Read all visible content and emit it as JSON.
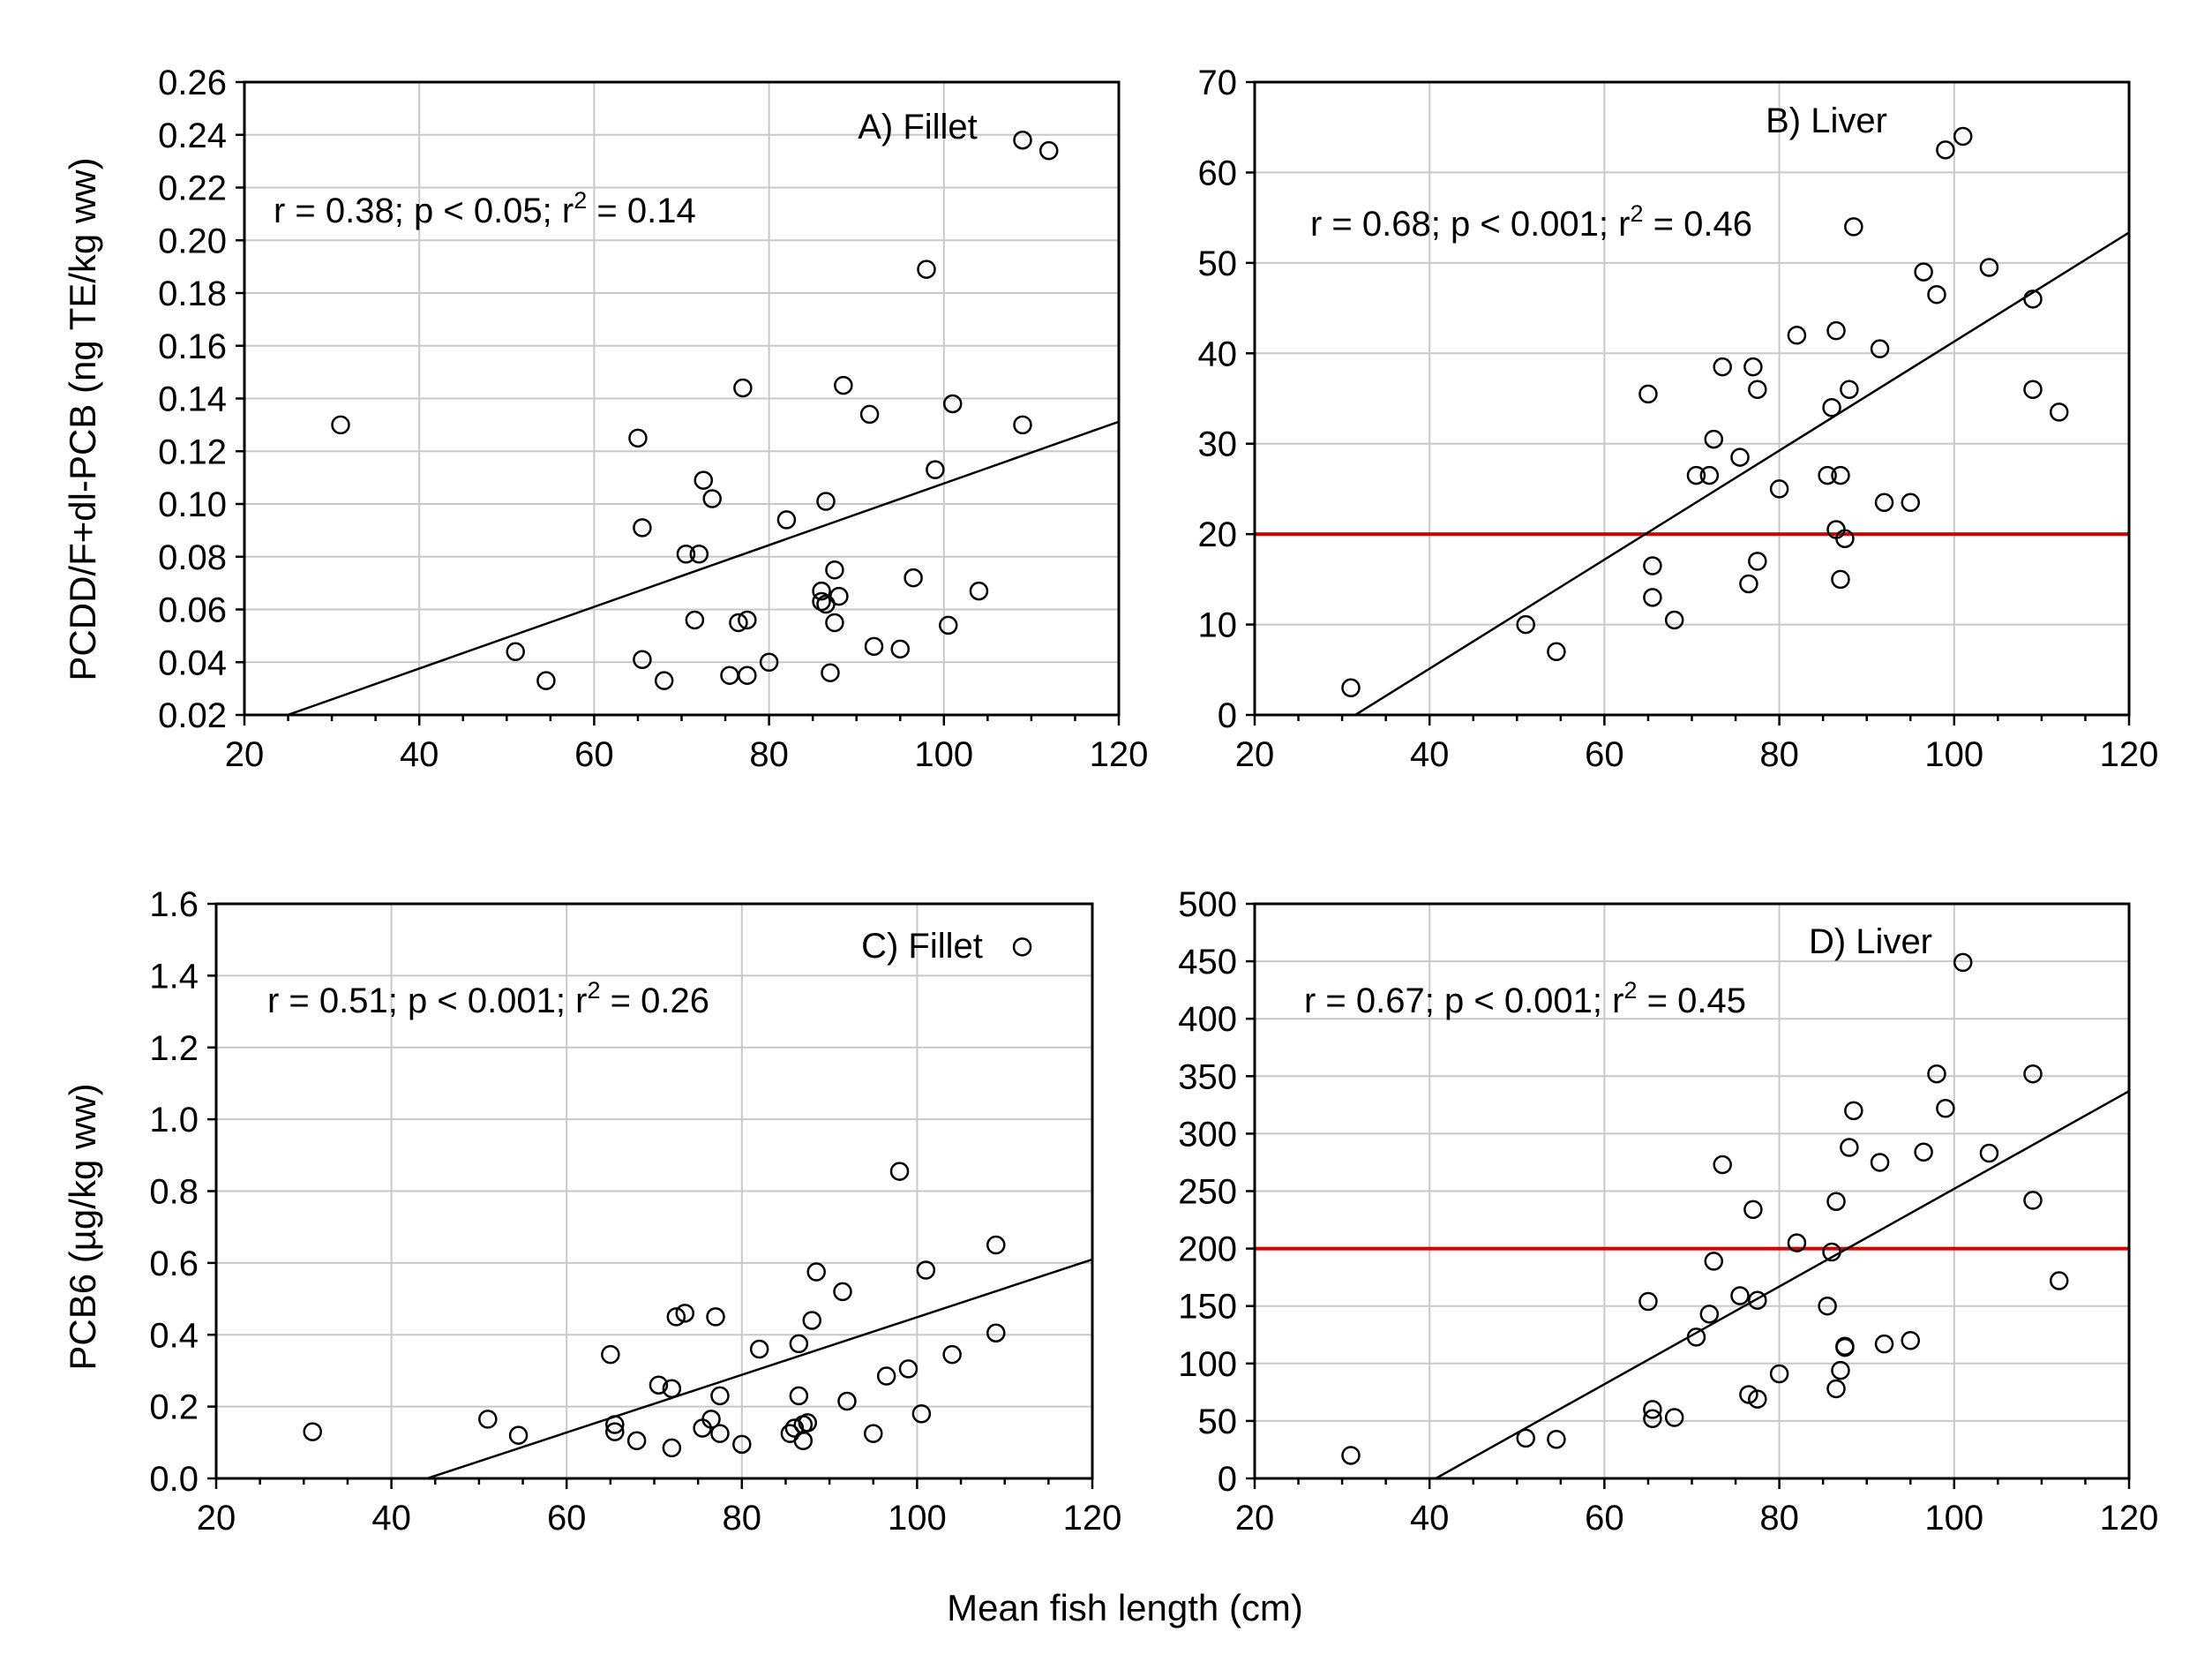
{
  "figure": {
    "xlabel": "Mean fish length (cm)",
    "ylabel_top": "PCDD/F+dl-PCB (ng TE/kg ww)",
    "ylabel_bottom": "PCB6 (µg/kg ww)",
    "colors": {
      "threshold": "#d40000",
      "grid": "#c8c8c8",
      "points": "#000000"
    }
  },
  "chart_data": [
    {
      "id": "A",
      "type": "scatter",
      "title": "A) Fillet",
      "stats": {
        "r": "0.38",
        "p": "< 0.05",
        "r2": "0.14"
      },
      "xlim": [
        20,
        120
      ],
      "ylim": [
        0.02,
        0.26
      ],
      "xticks": [
        20,
        40,
        60,
        80,
        100,
        120
      ],
      "xtick_labels": [
        "20",
        "40",
        "60",
        "80",
        "100",
        "120"
      ],
      "yticks": [
        0.02,
        0.04,
        0.06,
        0.08,
        0.1,
        0.12,
        0.14,
        0.16,
        0.18,
        0.2,
        0.22,
        0.24,
        0.26
      ],
      "ytick_labels": [
        "0.02",
        "0.04",
        "0.06",
        "0.08",
        "0.10",
        "0.12",
        "0.14",
        "0.16",
        "0.18",
        "0.20",
        "0.22",
        "0.24",
        "0.26"
      ],
      "points": [
        [
          31,
          0.13
        ],
        [
          51,
          0.044
        ],
        [
          54.5,
          0.033
        ],
        [
          65,
          0.125
        ],
        [
          65.5,
          0.091
        ],
        [
          65.5,
          0.041
        ],
        [
          68,
          0.033
        ],
        [
          70.5,
          0.081
        ],
        [
          71.5,
          0.056
        ],
        [
          72,
          0.081
        ],
        [
          72.5,
          0.109
        ],
        [
          73.5,
          0.102
        ],
        [
          75.5,
          0.035
        ],
        [
          76.5,
          0.055
        ],
        [
          77,
          0.144
        ],
        [
          77.5,
          0.056
        ],
        [
          77.5,
          0.035
        ],
        [
          80,
          0.04
        ],
        [
          82,
          0.094
        ],
        [
          86,
          0.067
        ],
        [
          86,
          0.063
        ],
        [
          86.5,
          0.101
        ],
        [
          86.5,
          0.062
        ],
        [
          87,
          0.036
        ],
        [
          87.5,
          0.075
        ],
        [
          87.5,
          0.055
        ],
        [
          88,
          0.065
        ],
        [
          88.5,
          0.145
        ],
        [
          91.5,
          0.134
        ],
        [
          92,
          0.046
        ],
        [
          95,
          0.045
        ],
        [
          96.5,
          0.072
        ],
        [
          98,
          0.189
        ],
        [
          99,
          0.113
        ],
        [
          100.5,
          0.054
        ],
        [
          101,
          0.138
        ],
        [
          104,
          0.067
        ],
        [
          109,
          0.13
        ],
        [
          109,
          0.238
        ],
        [
          112,
          0.234
        ]
      ],
      "fit": {
        "slope": 0.00117,
        "intercept": -0.0092
      },
      "threshold": null
    },
    {
      "id": "B",
      "type": "scatter",
      "title": "B) Liver",
      "stats": {
        "r": "0.68",
        "p": "< 0.001",
        "r2": "0.46"
      },
      "xlim": [
        20,
        120
      ],
      "ylim": [
        0,
        70
      ],
      "xticks": [
        20,
        40,
        60,
        80,
        100,
        120
      ],
      "xtick_labels": [
        "20",
        "40",
        "60",
        "80",
        "100",
        "120"
      ],
      "yticks": [
        0,
        10,
        20,
        30,
        40,
        50,
        60,
        70
      ],
      "ytick_labels": [
        "0",
        "10",
        "20",
        "30",
        "40",
        "50",
        "60",
        "70"
      ],
      "points": [
        [
          31,
          3
        ],
        [
          51,
          10
        ],
        [
          54.5,
          7
        ],
        [
          65,
          35.5
        ],
        [
          65.5,
          16.5
        ],
        [
          65.5,
          13
        ],
        [
          68,
          10.5
        ],
        [
          70.5,
          26.5
        ],
        [
          72,
          26.5
        ],
        [
          72.5,
          30.5
        ],
        [
          73.5,
          38.5
        ],
        [
          75.5,
          28.5
        ],
        [
          76.5,
          14.5
        ],
        [
          77,
          38.5
        ],
        [
          77.5,
          36
        ],
        [
          77.5,
          17
        ],
        [
          80,
          25
        ],
        [
          82,
          42
        ],
        [
          85.5,
          26.5
        ],
        [
          86,
          34
        ],
        [
          86.5,
          42.5
        ],
        [
          86.5,
          20.5
        ],
        [
          87,
          15
        ],
        [
          87,
          26.5
        ],
        [
          87.5,
          19.5
        ],
        [
          88,
          36
        ],
        [
          88.5,
          54
        ],
        [
          91.5,
          40.5
        ],
        [
          92,
          23.5
        ],
        [
          95,
          23.5
        ],
        [
          96.5,
          49
        ],
        [
          98,
          46.5
        ],
        [
          99,
          62.5
        ],
        [
          101,
          64
        ],
        [
          104,
          49.5
        ],
        [
          109,
          46
        ],
        [
          109,
          36
        ],
        [
          112,
          33.5
        ]
      ],
      "fit": {
        "slope": 0.603,
        "intercept": -19.0
      },
      "threshold": 20
    },
    {
      "id": "C",
      "type": "scatter",
      "title": "C) Fillet",
      "stats": {
        "r": "0.51",
        "p": "< 0.001",
        "r2": "0.26"
      },
      "xlim": [
        20,
        120
      ],
      "ylim": [
        0,
        1.6
      ],
      "xticks": [
        20,
        40,
        60,
        80,
        100,
        120
      ],
      "xtick_labels": [
        "20",
        "40",
        "60",
        "80",
        "100",
        "120"
      ],
      "yticks": [
        0,
        0.2,
        0.4,
        0.6,
        0.8,
        1.0,
        1.2,
        1.4,
        1.6
      ],
      "ytick_labels": [
        "0.0",
        "0.2",
        "0.4",
        "0.6",
        "0.8",
        "1.0",
        "1.2",
        "1.4",
        "1.6"
      ],
      "points": [
        [
          31,
          0.13
        ],
        [
          51,
          0.165
        ],
        [
          54.5,
          0.12
        ],
        [
          65,
          0.345
        ],
        [
          65.5,
          0.15
        ],
        [
          65.5,
          0.13
        ],
        [
          68,
          0.105
        ],
        [
          70.5,
          0.26
        ],
        [
          72,
          0.085
        ],
        [
          72,
          0.25
        ],
        [
          72.5,
          0.45
        ],
        [
          73.5,
          0.46
        ],
        [
          75.5,
          0.14
        ],
        [
          76.5,
          0.165
        ],
        [
          77,
          0.45
        ],
        [
          77.5,
          0.125
        ],
        [
          77.5,
          0.23
        ],
        [
          80,
          0.095
        ],
        [
          82,
          0.36
        ],
        [
          85.5,
          0.125
        ],
        [
          86,
          0.14
        ],
        [
          86.5,
          0.375
        ],
        [
          86.5,
          0.23
        ],
        [
          87,
          0.105
        ],
        [
          87,
          0.15
        ],
        [
          87.5,
          0.155
        ],
        [
          88,
          0.44
        ],
        [
          88.5,
          0.575
        ],
        [
          91.5,
          0.52
        ],
        [
          92,
          0.215
        ],
        [
          95,
          0.125
        ],
        [
          96.5,
          0.285
        ],
        [
          98,
          0.855
        ],
        [
          99,
          0.305
        ],
        [
          100.5,
          0.18
        ],
        [
          101,
          0.58
        ],
        [
          104,
          0.345
        ],
        [
          109,
          0.405
        ],
        [
          109,
          0.65
        ],
        [
          112,
          1.48
        ]
      ],
      "fit": {
        "slope": 0.00803,
        "intercept": -0.354
      },
      "threshold": null
    },
    {
      "id": "D",
      "type": "scatter",
      "title": "D) Liver",
      "stats": {
        "r": "0.67",
        "p": "< 0.001",
        "r2": "0.45"
      },
      "xlim": [
        20,
        120
      ],
      "ylim": [
        0,
        500
      ],
      "xticks": [
        20,
        40,
        60,
        80,
        100,
        120
      ],
      "xtick_labels": [
        "20",
        "40",
        "60",
        "80",
        "100",
        "120"
      ],
      "yticks": [
        0,
        50,
        100,
        150,
        200,
        250,
        300,
        350,
        400,
        450,
        500
      ],
      "ytick_labels": [
        "0",
        "50",
        "100",
        "150",
        "200",
        "250",
        "300",
        "350",
        "400",
        "450",
        "500"
      ],
      "points": [
        [
          31,
          20
        ],
        [
          51,
          35
        ],
        [
          54.5,
          34
        ],
        [
          65,
          154
        ],
        [
          65.5,
          60
        ],
        [
          65.5,
          52
        ],
        [
          68,
          53
        ],
        [
          70.5,
          123
        ],
        [
          72,
          143
        ],
        [
          72.5,
          189
        ],
        [
          73.5,
          273
        ],
        [
          75.5,
          159
        ],
        [
          76.5,
          73
        ],
        [
          77,
          234
        ],
        [
          77.5,
          155
        ],
        [
          77.5,
          69
        ],
        [
          80,
          91
        ],
        [
          82,
          205
        ],
        [
          85.5,
          150
        ],
        [
          86,
          197
        ],
        [
          86.5,
          241
        ],
        [
          86.5,
          78
        ],
        [
          87,
          94
        ],
        [
          87.5,
          115
        ],
        [
          87.5,
          114
        ],
        [
          88,
          288
        ],
        [
          88.5,
          320
        ],
        [
          91.5,
          275
        ],
        [
          92,
          117
        ],
        [
          95,
          120
        ],
        [
          96.5,
          284
        ],
        [
          98,
          352
        ],
        [
          99,
          322
        ],
        [
          101,
          449
        ],
        [
          104,
          283
        ],
        [
          109,
          352
        ],
        [
          109,
          242
        ],
        [
          112,
          172
        ]
      ],
      "fit": {
        "slope": 4.25,
        "intercept": -173
      },
      "threshold": 200
    }
  ]
}
